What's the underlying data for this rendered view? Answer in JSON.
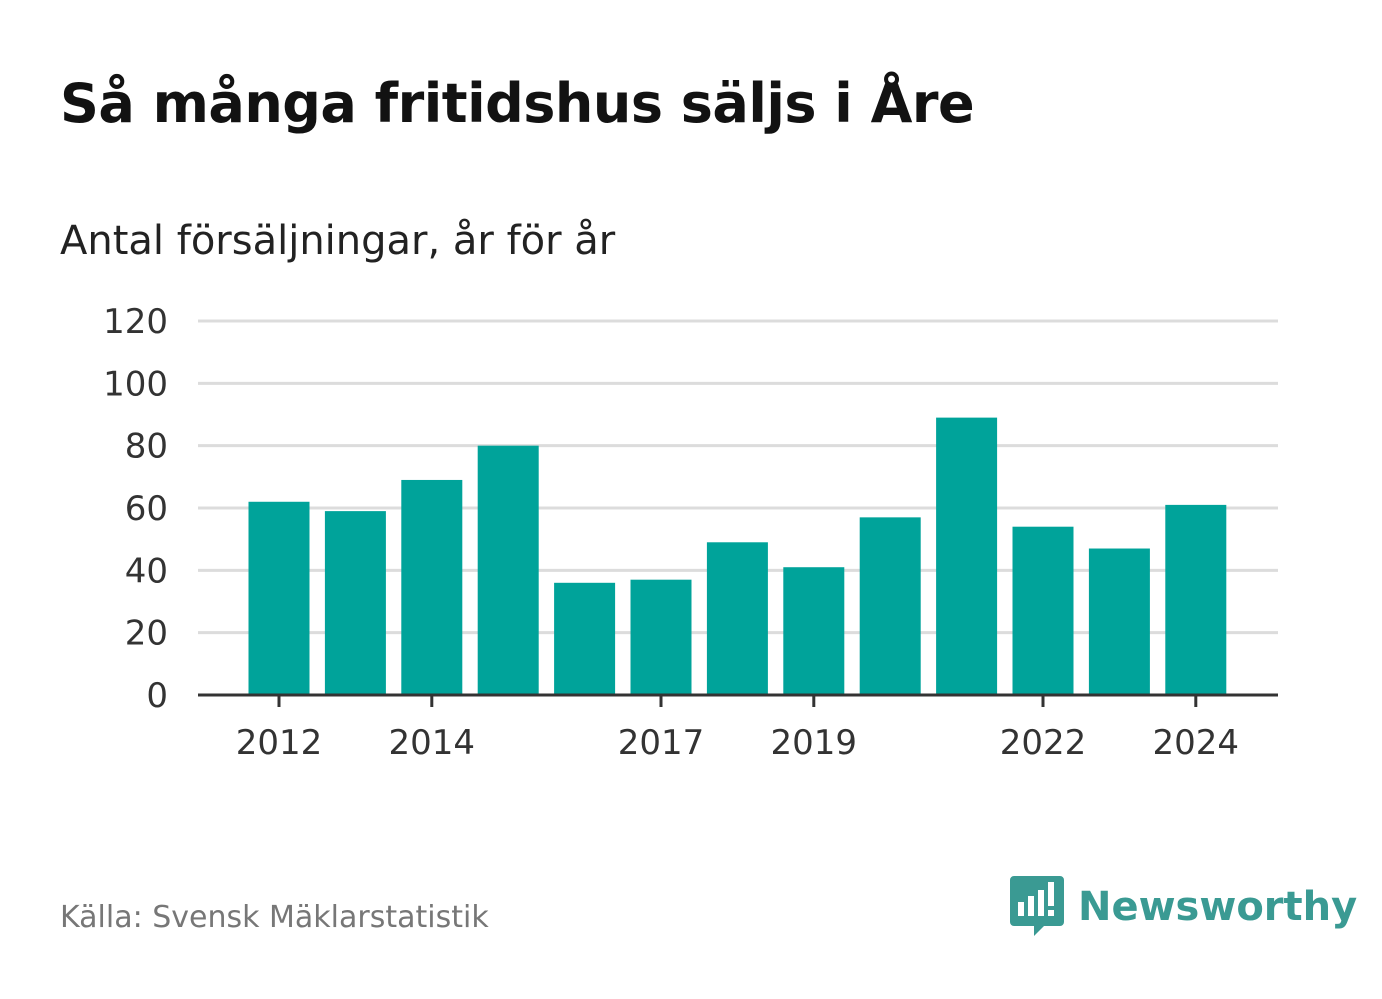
{
  "title": "Så många fritidshus säljs i Åre",
  "subtitle": "Antal försäljningar, år för år",
  "source": "Källa: Svensk Mäklarstatistik",
  "brand": {
    "name": "Newsworthy",
    "icon": "newsworthy-logo-icon"
  },
  "colors": {
    "bar": "#00a39a",
    "grid": "#dcdcdc",
    "axis": "#333333",
    "brand": "#3a9a93"
  },
  "chart_data": {
    "type": "bar",
    "categories": [
      "2012",
      "2013",
      "2014",
      "2015",
      "2016",
      "2017",
      "2018",
      "2019",
      "2020",
      "2021",
      "2022",
      "2023",
      "2024"
    ],
    "values": [
      62,
      59,
      69,
      80,
      36,
      37,
      49,
      41,
      57,
      89,
      54,
      47,
      61
    ],
    "x_tick_labels": [
      "2012",
      "2014",
      "2017",
      "2019",
      "2022",
      "2024"
    ],
    "y_ticks": [
      0,
      20,
      40,
      60,
      80,
      100,
      120
    ],
    "ylim": [
      0,
      120
    ],
    "grid": true,
    "legend": "none"
  }
}
